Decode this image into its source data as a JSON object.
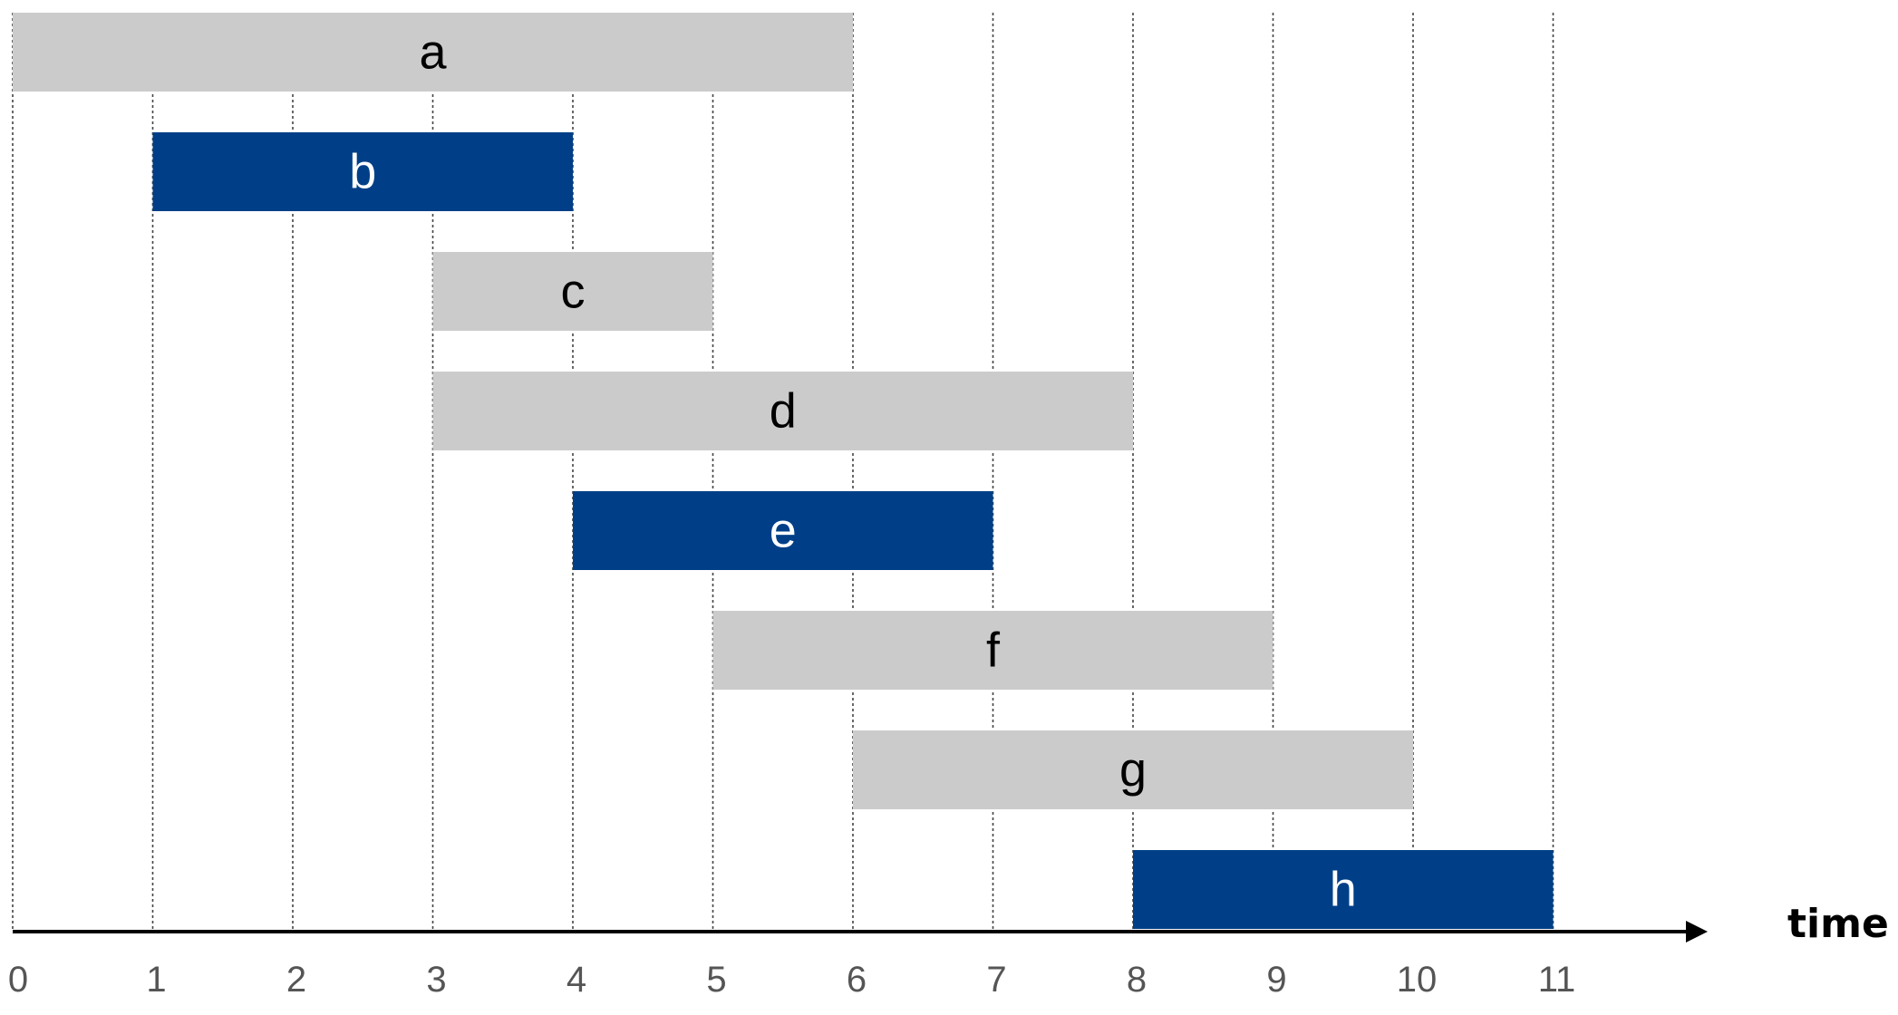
{
  "chart_data": {
    "type": "bar",
    "subtype": "interval-gantt",
    "xlabel": "time",
    "xlim": [
      0,
      11
    ],
    "x_ticks": [
      "0",
      "1",
      "2",
      "3",
      "4",
      "5",
      "6",
      "7",
      "8",
      "9",
      "10",
      "11"
    ],
    "grid": "vertical-dotted",
    "colors": {
      "selected": "#003f87",
      "unselected": "#cbcbcb",
      "selected_text": "#ffffff",
      "unselected_text": "#000000"
    },
    "intervals": [
      {
        "label": "a",
        "start": 0,
        "end": 6,
        "selected": false
      },
      {
        "label": "b",
        "start": 1,
        "end": 4,
        "selected": true
      },
      {
        "label": "c",
        "start": 3,
        "end": 5,
        "selected": false
      },
      {
        "label": "d",
        "start": 3,
        "end": 8,
        "selected": false
      },
      {
        "label": "e",
        "start": 4,
        "end": 7,
        "selected": true
      },
      {
        "label": "f",
        "start": 5,
        "end": 9,
        "selected": false
      },
      {
        "label": "g",
        "start": 6,
        "end": 10,
        "selected": false
      },
      {
        "label": "h",
        "start": 8,
        "end": 11,
        "selected": true
      }
    ]
  }
}
